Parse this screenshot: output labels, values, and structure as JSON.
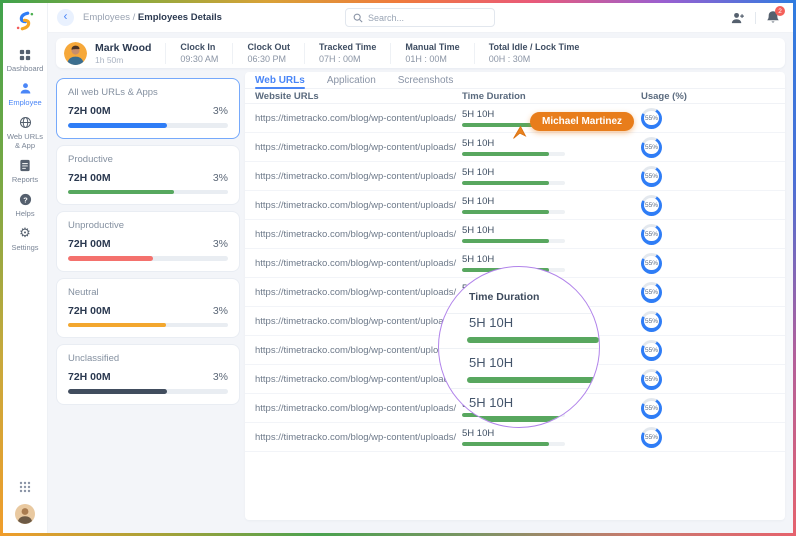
{
  "topbar": {
    "breadcrumb_prefix": "Employees /",
    "breadcrumb_current": "Employees Details",
    "search_placeholder": "Search...",
    "notification_count": "2"
  },
  "sidebar": {
    "items": [
      {
        "label": "Dashboard"
      },
      {
        "label": "Employee"
      },
      {
        "label": "Web URLs & App"
      },
      {
        "label": "Reports"
      },
      {
        "label": "Helps"
      },
      {
        "label": "Settings"
      }
    ]
  },
  "employee_header": {
    "name": "Mark Wood",
    "session_duration": "1h 50m",
    "stats": [
      {
        "label": "Clock In",
        "value": "09:30 AM"
      },
      {
        "label": "Clock Out",
        "value": "06:30 PM"
      },
      {
        "label": "Tracked Time",
        "value": "07H : 00M"
      },
      {
        "label": "Manual Time",
        "value": "01H : 00M"
      },
      {
        "label": "Total Idle / Lock Time",
        "value": "00H : 30M"
      }
    ]
  },
  "category_cards": [
    {
      "label": "All web URLs & Apps",
      "time": "72H 00M",
      "percent": "3%",
      "bar_color": "#2f7df6",
      "bar_fill": 62,
      "selected": true
    },
    {
      "label": "Productive",
      "time": "72H 00M",
      "percent": "3%",
      "bar_color": "#57a85f",
      "bar_fill": 66,
      "selected": false
    },
    {
      "label": "Unproductive",
      "time": "72H 00M",
      "percent": "3%",
      "bar_color": "#f4716d",
      "bar_fill": 53,
      "selected": false
    },
    {
      "label": "Neutral",
      "time": "72H 00M",
      "percent": "3%",
      "bar_color": "#f3a72e",
      "bar_fill": 61,
      "selected": false
    },
    {
      "label": "Unclassified",
      "time": "72H 00M",
      "percent": "3%",
      "bar_color": "#414d5e",
      "bar_fill": 62,
      "selected": false
    }
  ],
  "tabs": [
    {
      "label": "Web URLs",
      "active": true
    },
    {
      "label": "Application",
      "active": false
    },
    {
      "label": "Screenshots",
      "active": false
    }
  ],
  "url_table": {
    "columns": [
      "Website URLs",
      "Time Duration",
      "Usage (%)"
    ],
    "rows": [
      {
        "url": "https://timetracko.com/blog/wp-content/uploads/",
        "duration": "5H 10H",
        "duration_fill": 84,
        "usage": "55%"
      },
      {
        "url": "https://timetracko.com/blog/wp-content/uploads/",
        "duration": "5H 10H",
        "duration_fill": 84,
        "usage": "55%"
      },
      {
        "url": "https://timetracko.com/blog/wp-content/uploads/",
        "duration": "5H 10H",
        "duration_fill": 84,
        "usage": "55%"
      },
      {
        "url": "https://timetracko.com/blog/wp-content/uploads/",
        "duration": "5H 10H",
        "duration_fill": 84,
        "usage": "55%"
      },
      {
        "url": "https://timetracko.com/blog/wp-content/uploads/",
        "duration": "5H 10H",
        "duration_fill": 84,
        "usage": "55%"
      },
      {
        "url": "https://timetracko.com/blog/wp-content/uploads/",
        "duration": "5H 10H",
        "duration_fill": 84,
        "usage": "55%"
      },
      {
        "url": "https://timetracko.com/blog/wp-content/uploads/",
        "duration": "5H 10H",
        "duration_fill": 84,
        "usage": "55%"
      },
      {
        "url": "https://timetracko.com/blog/wp-content/uploads/",
        "duration": "5H 10H",
        "duration_fill": 84,
        "usage": "55%"
      },
      {
        "url": "https://timetracko.com/blog/wp-content/uploads/",
        "duration": "5H 10H",
        "duration_fill": 84,
        "usage": "55%"
      },
      {
        "url": "https://timetracko.com/blog/wp-content/uploads/",
        "duration": "5H 10H",
        "duration_fill": 84,
        "usage": "55%"
      },
      {
        "url": "https://timetracko.com/blog/wp-content/uploads/",
        "duration": "5H 10H",
        "duration_fill": 84,
        "usage": "55%"
      },
      {
        "url": "https://timetracko.com/blog/wp-content/uploads/",
        "duration": "5H 10H",
        "duration_fill": 84,
        "usage": "55%"
      }
    ]
  },
  "cursor_overlay": {
    "user": "Michael Martinez",
    "color": "#e87d1b"
  },
  "magnifier": {
    "header": "Time Duration",
    "rows": [
      {
        "duration": "5H 10H"
      },
      {
        "duration": "5H 10H"
      },
      {
        "duration": "5H 10H"
      }
    ]
  },
  "colors": {
    "accent_blue": "#2f7df6",
    "bar_green": "#58a75f",
    "cursor_orange": "#e87d1b",
    "lens_purple": "#b183ea",
    "badge_red": "#f4605a"
  }
}
